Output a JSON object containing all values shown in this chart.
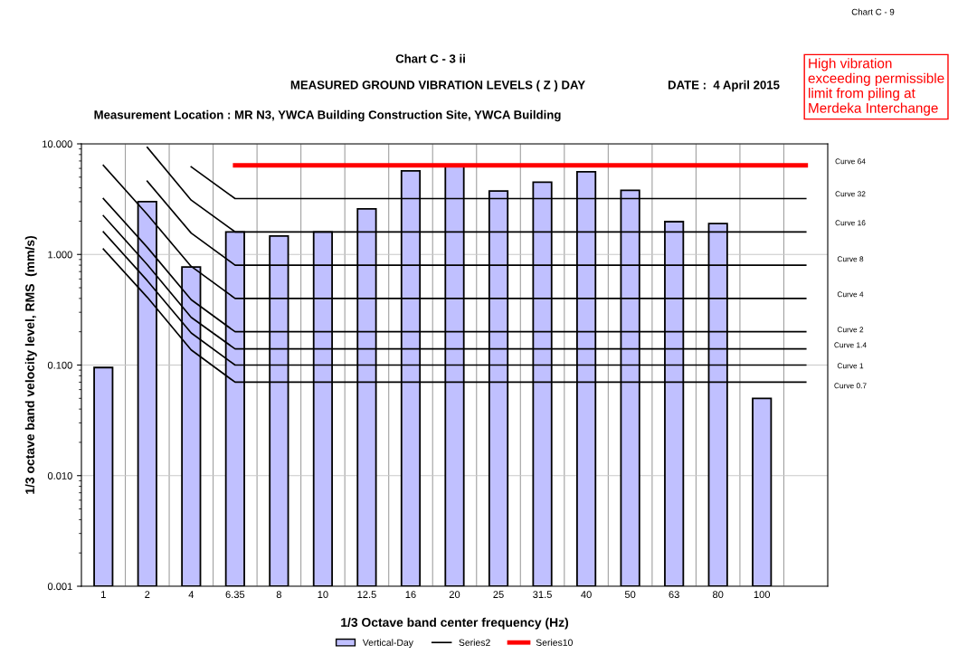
{
  "chart_data": {
    "type": "bar",
    "title": "Chart C - 3 ii",
    "subtitle": "MEASURED GROUND VIBRATION LEVELS ( Z ) DAY",
    "xlabel": "1/3 Octave band center frequency (Hz)",
    "ylabel": "1/3 octave band velocity level, RMS  (mm/s)",
    "categories": [
      "1",
      "2",
      "4",
      "6.35",
      "8",
      "10",
      "12.5",
      "16",
      "20",
      "25",
      "31.5",
      "40",
      "50",
      "63",
      "80",
      "100",
      null
    ],
    "log": "y",
    "ylim": [
      0.001,
      10
    ],
    "yticks": [
      {
        "value": 0.001,
        "label": "0.001"
      },
      {
        "value": 0.01,
        "label": "0.010"
      },
      {
        "value": 0.1,
        "label": "0.100"
      },
      {
        "value": 1,
        "label": "1.000"
      },
      {
        "value": 10,
        "label": "10.000"
      }
    ],
    "grid": true,
    "legend": "bottom",
    "series": [
      {
        "name": "Vertical-Day",
        "color": "#c0c0ff",
        "values": [
          0.095,
          3.0,
          0.77,
          1.6,
          1.47,
          1.6,
          2.58,
          5.7,
          6.3,
          3.75,
          4.5,
          5.6,
          3.8,
          1.98,
          1.9,
          0.05,
          null
        ]
      },
      {
        "name": "Series2",
        "type": "line",
        "color": "#000000",
        "values": [
          1.12,
          0.41,
          0.137,
          0.07,
          0.07,
          0.07,
          0.07,
          0.07,
          0.07,
          0.07,
          0.07,
          0.07,
          0.07,
          0.07,
          0.07,
          0.07,
          0.07
        ]
      },
      {
        "type": "line",
        "color": "#000000",
        "values": [
          1.6,
          0.58,
          0.195,
          0.1,
          0.1,
          0.1,
          0.1,
          0.1,
          0.1,
          0.1,
          0.1,
          0.1,
          0.1,
          0.1,
          0.1,
          0.1,
          0.1
        ]
      },
      {
        "type": "line",
        "color": "#000000",
        "values": [
          2.24,
          0.81,
          0.27,
          0.14,
          0.14,
          0.14,
          0.14,
          0.14,
          0.14,
          0.14,
          0.14,
          0.14,
          0.14,
          0.14,
          0.14,
          0.14,
          0.14
        ]
      },
      {
        "type": "line",
        "color": "#000000",
        "values": [
          3.2,
          1.16,
          0.39,
          0.2,
          0.2,
          0.2,
          0.2,
          0.2,
          0.2,
          0.2,
          0.2,
          0.2,
          0.2,
          0.2,
          0.2,
          0.2,
          0.2
        ]
      },
      {
        "type": "line",
        "color": "#000000",
        "values": [
          6.4,
          2.3,
          0.78,
          0.4,
          0.4,
          0.4,
          0.4,
          0.4,
          0.4,
          0.4,
          0.4,
          0.4,
          0.4,
          0.4,
          0.4,
          0.4,
          0.4
        ]
      },
      {
        "type": "line",
        "color": "#000000",
        "values": [
          null,
          4.6,
          1.56,
          0.8,
          0.8,
          0.8,
          0.8,
          0.8,
          0.8,
          0.8,
          0.8,
          0.8,
          0.8,
          0.8,
          0.8,
          0.8,
          0.8
        ]
      },
      {
        "type": "line",
        "color": "#000000",
        "values": [
          null,
          9.3,
          3.1,
          1.6,
          1.6,
          1.6,
          1.6,
          1.6,
          1.6,
          1.6,
          1.6,
          1.6,
          1.6,
          1.6,
          1.6,
          1.6,
          1.6
        ]
      },
      {
        "type": "line",
        "color": "#000000",
        "values": [
          null,
          null,
          6.2,
          3.2,
          3.2,
          3.2,
          3.2,
          3.2,
          3.2,
          3.2,
          3.2,
          3.2,
          3.2,
          3.2,
          3.2,
          3.2,
          3.2
        ]
      },
      {
        "name": "Series10",
        "type": "line",
        "color": "#ff0000",
        "values": [
          null,
          null,
          null,
          6.4,
          6.4,
          6.4,
          6.4,
          6.4,
          6.4,
          6.4,
          6.4,
          6.4,
          6.4,
          6.4,
          6.4,
          6.4,
          6.4
        ]
      }
    ],
    "annotations": [
      "Chart C - 9",
      "DATE :  4 April 2015",
      "Measurement Location : MR N3, YWCA Building Construction Site, YWCA Building",
      "High vibration\nexceeding permissible\nlimit from piling at\nMerdeka Interchange",
      "Curve 64",
      "Curve 32",
      "Curve 16",
      "Curve 8",
      "Curve 4",
      "Curve 2",
      "Curve 1.4",
      "Curve 1",
      "Curve 0.7"
    ]
  }
}
